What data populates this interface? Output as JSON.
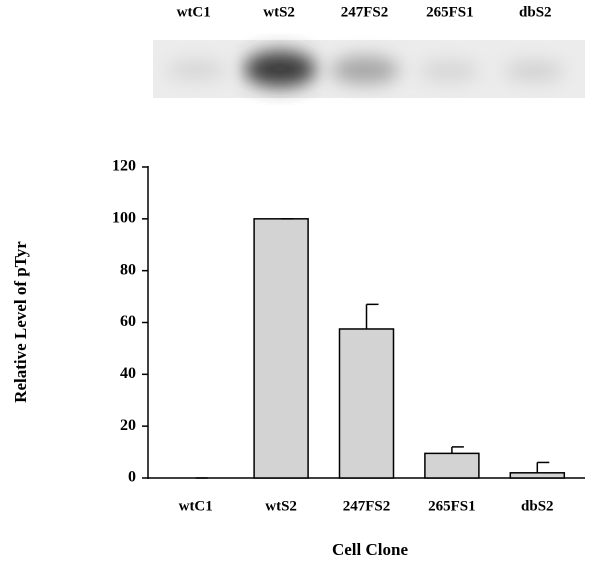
{
  "chart_data": {
    "type": "bar",
    "xlabel": "Cell Clone",
    "ylabel": "Relative Level of pTyr",
    "categories": [
      "wtC1",
      "wtS2",
      "247FS2",
      "265FS1",
      "dbS2"
    ],
    "values": [
      0,
      100,
      57.5,
      9.5,
      2
    ],
    "errors": [
      0,
      0,
      9.5,
      2.5,
      4
    ],
    "color": "#d3d3d3",
    "ylim": [
      0,
      120
    ],
    "yticks": [
      0,
      20,
      40,
      60,
      80,
      100,
      120
    ]
  }
}
